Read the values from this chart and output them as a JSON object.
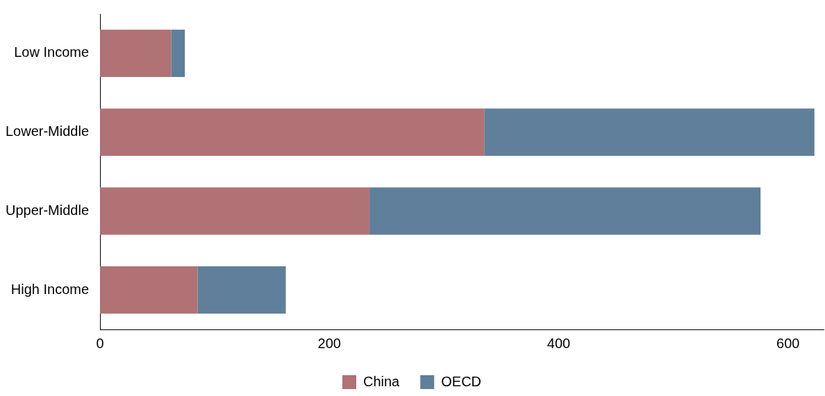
{
  "chart_data": {
    "type": "bar",
    "orientation": "horizontal",
    "stacked": true,
    "categories": [
      "Low Income",
      "Lower-Middle",
      "Upper-Middle",
      "High Income"
    ],
    "series": [
      {
        "name": "China",
        "color": "#b07274",
        "values": [
          62,
          335,
          235,
          85
        ]
      },
      {
        "name": "OECD",
        "color": "#5f7f9b",
        "values": [
          12,
          288,
          341,
          77
        ]
      }
    ],
    "xlim": [
      0,
      631
    ],
    "xticks": [
      0,
      200,
      400,
      600
    ],
    "grid": false,
    "legend": "bottom"
  }
}
